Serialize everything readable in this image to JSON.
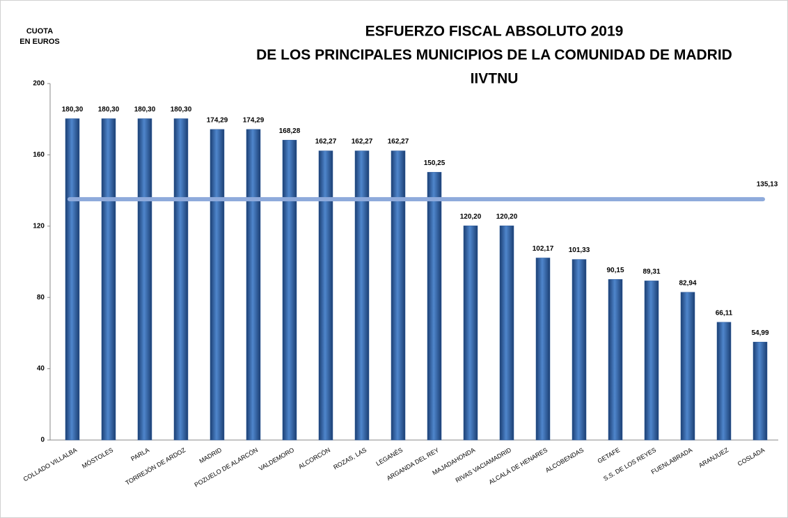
{
  "chart_data": {
    "type": "bar",
    "title": [
      "ESFUERZO FISCAL ABSOLUTO 2019",
      "DE LOS PRINCIPALES MUNICIPIOS DE LA COMUNIDAD DE MADRID",
      "IIVTNU"
    ],
    "y_label": [
      "CUOTA",
      "EN EUROS"
    ],
    "categories": [
      "COLLADO VILLALBA",
      "MÓSTOLES",
      "PARLA",
      "TORREJÓN DE ARDOZ",
      "MADRID",
      "POZUELO DE ALARCÓN",
      "VALDEMORO",
      "ALCORCÓN",
      "ROZAS, LAS",
      "LEGANÉS",
      "ARGANDA DEL REY",
      "MAJADAHONDA",
      "RIVAS VACIAMADRID",
      "ALCALÁ DE HENARES",
      "ALCOBENDAS",
      "GETAFE",
      "S.S. DE LOS REYES",
      "FUENLABRADA",
      "ARANJUEZ",
      "COSLADA"
    ],
    "values": [
      180.3,
      180.3,
      180.3,
      180.3,
      174.29,
      174.29,
      168.28,
      162.27,
      162.27,
      162.27,
      150.25,
      120.2,
      120.2,
      102.17,
      101.33,
      90.15,
      89.31,
      82.94,
      66.11,
      54.99
    ],
    "value_labels": [
      "180,30",
      "180,30",
      "180,30",
      "180,30",
      "174,29",
      "174,29",
      "168,28",
      "162,27",
      "162,27",
      "162,27",
      "150,25",
      "120,20",
      "120,20",
      "102,17",
      "101,33",
      "90,15",
      "89,31",
      "82,94",
      "66,11",
      "54,99"
    ],
    "color": "#2e5c9e",
    "reference_line": {
      "value": 135.13,
      "label": "135,13",
      "color": "#8eaadb"
    },
    "ylim": [
      0,
      200
    ],
    "yticks": [
      0,
      40,
      80,
      120,
      160,
      200
    ]
  }
}
